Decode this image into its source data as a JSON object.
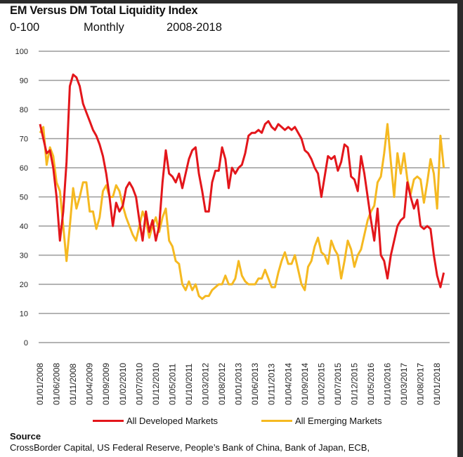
{
  "header": {
    "title": "EM Versus DM Total Liquidity Index",
    "range": "0-100",
    "frequency": "Monthly",
    "period": "2008-2018"
  },
  "source": {
    "title": "Source",
    "text": "CrossBorder Capital, US Federal Reserve, People’s Bank of China, Bank of Japan, ECB,"
  },
  "chart_data": {
    "type": "line",
    "title": "EM Versus DM Total Liquidity Index",
    "xlabel": "",
    "ylabel": "0-100",
    "ylim": [
      0,
      100
    ],
    "yticks": [
      "0",
      "10",
      "20",
      "30",
      "40",
      "50",
      "60",
      "70",
      "80",
      "90",
      "100"
    ],
    "grid": true,
    "legend_position": "bottom",
    "x_start": "01/01/2008",
    "x_step_months": 1,
    "xtick_every_months": 5,
    "xtick_labels": [
      "01/01/2008",
      "01/06/2008",
      "01/11/2008",
      "01/04/2009",
      "01/09/2009",
      "01/02/2010",
      "01/07/2010",
      "01/12/2010",
      "01/05/2011",
      "01/10/2011",
      "01/03/2012",
      "01/08/2012",
      "01/01/2013",
      "01/06/2013",
      "01/11/2013",
      "01/04/2014",
      "01/09/2014",
      "01/02/2015",
      "01/07/2015",
      "01/12/2015",
      "01/05/2016",
      "01/10/2016",
      "01/03/2017",
      "01/08/2017",
      "01/01/2018"
    ],
    "series": [
      {
        "name": "All Developed Markets",
        "color": "#e3161b",
        "values": [
          75,
          70,
          65,
          66,
          60,
          50,
          35,
          45,
          62,
          88,
          92,
          91,
          88,
          82,
          79,
          76,
          73,
          71,
          68,
          64,
          58,
          50,
          40,
          48,
          45,
          47,
          53,
          55,
          53,
          50,
          42,
          35,
          45,
          38,
          42,
          35,
          40,
          55,
          66,
          58,
          57,
          55,
          58,
          53,
          58,
          63,
          66,
          67,
          58,
          52,
          45,
          45,
          55,
          59,
          59,
          67,
          63,
          53,
          60,
          58,
          60,
          61,
          65,
          71,
          72,
          72,
          73,
          72,
          75,
          76,
          74,
          73,
          75,
          74,
          73,
          74,
          73,
          74,
          72,
          70,
          66,
          65,
          63,
          60,
          58,
          50,
          57,
          64,
          63,
          64,
          59,
          62,
          68,
          67,
          57,
          56,
          52,
          64,
          58,
          50,
          42,
          35,
          46,
          30,
          28,
          22,
          30,
          35,
          40,
          42,
          43,
          55,
          50,
          46,
          49,
          40,
          39,
          40,
          39,
          30,
          23,
          19,
          24
        ]
      },
      {
        "name": "All Emerging Markets",
        "color": "#f5b921",
        "values": [
          72,
          74,
          61,
          67,
          64,
          55,
          52,
          40,
          28,
          40,
          53,
          46,
          50,
          55,
          55,
          45,
          45,
          39,
          43,
          52,
          54,
          50,
          50,
          54,
          52,
          47,
          43,
          40,
          37,
          35,
          40,
          45,
          42,
          36,
          40,
          43,
          38,
          43,
          46,
          35,
          33,
          28,
          27,
          20,
          18,
          21,
          18,
          20,
          16,
          15,
          16,
          16,
          18,
          19,
          20,
          20,
          23,
          20,
          20,
          22,
          28,
          23,
          21,
          20,
          20,
          20,
          22,
          22,
          25,
          22,
          19,
          19,
          24,
          28,
          31,
          27,
          27,
          30,
          25,
          20,
          18,
          26,
          28,
          33,
          36,
          31,
          30,
          27,
          35,
          32,
          30,
          22,
          28,
          35,
          32,
          26,
          30,
          32,
          37,
          42,
          45,
          47,
          55,
          57,
          65,
          75,
          62,
          50,
          65,
          58,
          65,
          56,
          51,
          56,
          57,
          56,
          48,
          55,
          63,
          58,
          46,
          71,
          60
        ]
      }
    ]
  }
}
